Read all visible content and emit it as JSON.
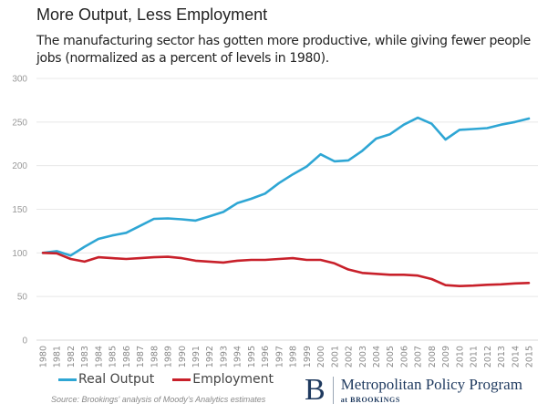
{
  "header": {
    "title": "More Output, Less Employment",
    "subtitle": "The manufacturing sector has gotten more productive, while giving fewer people jobs (normalized as a percent of levels in 1980)."
  },
  "chart_data": {
    "type": "line",
    "title": "More Output, Less Employment",
    "subtitle": "The manufacturing sector has gotten more productive, while giving fewer people jobs (normalized as a percent of levels in 1980).",
    "xlabel": "",
    "ylabel": "",
    "ylim": [
      0,
      300
    ],
    "yticks": [
      0,
      50,
      100,
      150,
      200,
      250,
      300
    ],
    "grid": true,
    "legend_position": "bottom-left",
    "x": [
      "1980",
      "1981",
      "1982",
      "1983",
      "1984",
      "1985",
      "1986",
      "1987",
      "1988",
      "1989",
      "1990",
      "1991",
      "1992",
      "1993",
      "1994",
      "1995",
      "1996",
      "1997",
      "1998",
      "1999",
      "2000",
      "2001",
      "2002",
      "2003",
      "2004",
      "2005",
      "2006",
      "2007",
      "2008",
      "2009",
      "2010",
      "2011",
      "2012",
      "2013",
      "2014",
      "2015"
    ],
    "series": [
      {
        "name": "Real Output",
        "color": "#2ea6d4",
        "values": [
          100,
          102,
          97,
          107,
          116,
          120,
          123,
          131,
          139,
          139.5,
          138.5,
          137,
          142,
          147,
          157,
          162,
          168,
          180,
          190,
          199,
          213,
          205,
          206,
          217,
          231,
          236,
          247,
          255,
          248,
          230,
          241,
          242,
          243,
          247,
          250,
          254
        ]
      },
      {
        "name": "Employment",
        "color": "#c8202a",
        "values": [
          100,
          99.5,
          93,
          90,
          95,
          94,
          93,
          94,
          95,
          95.5,
          94,
          91,
          90,
          89,
          91,
          92,
          92,
          93,
          94,
          92,
          92,
          88,
          81,
          77,
          76,
          75,
          75,
          74,
          70,
          63,
          62,
          62.5,
          63.5,
          64,
          65,
          65.5
        ]
      }
    ]
  },
  "legend": {
    "items": [
      {
        "label": "Real Output",
        "color": "#2ea6d4"
      },
      {
        "label": "Employment",
        "color": "#c8202a"
      }
    ]
  },
  "footer": {
    "source": "Source: Brookings' analysis of Moody's Analytics estimates",
    "logo_letter": "B",
    "logo_main": "Metropolitan Policy Program",
    "logo_sub": "at BROOKINGS"
  }
}
